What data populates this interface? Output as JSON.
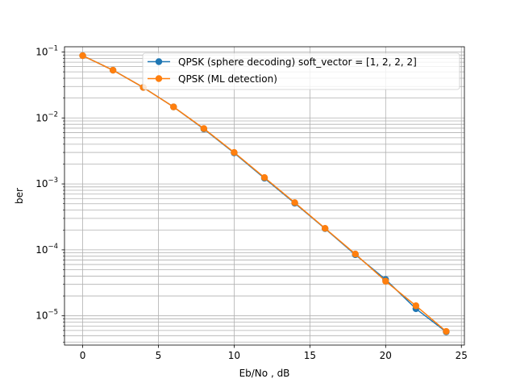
{
  "chart_data": {
    "type": "line",
    "title": "",
    "xlabel": "Eb/No , dB",
    "ylabel": "ber",
    "yscale": "log",
    "xlim": [
      -1.2,
      25.2
    ],
    "ylim": [
      3.6e-06,
      0.12
    ],
    "x_ticks": [
      0,
      5,
      10,
      15,
      20,
      25
    ],
    "y_ticks": [
      {
        "value": 0.1,
        "base": "10",
        "exp": "−1"
      },
      {
        "value": 0.01,
        "base": "10",
        "exp": "−2"
      },
      {
        "value": 0.001,
        "base": "10",
        "exp": "−3"
      },
      {
        "value": 0.0001,
        "base": "10",
        "exp": "−4"
      },
      {
        "value": 1e-05,
        "base": "10",
        "exp": "−5"
      }
    ],
    "grid": true,
    "legend_position": "top-right",
    "x": [
      0,
      2,
      4,
      6,
      8,
      10,
      12,
      14,
      16,
      18,
      20,
      22,
      24
    ],
    "series": [
      {
        "name": "QPSK (sphere decoding) soft_vector = [1, 2, 2, 2]",
        "color": "#1f77b4",
        "values": [
          0.088,
          0.053,
          0.029,
          0.0147,
          0.0068,
          0.00295,
          0.00122,
          0.00051,
          0.00021,
          8.45e-05,
          3.55e-05,
          1.28e-05,
          5.7e-06
        ]
      },
      {
        "name": "QPSK (ML detection)",
        "color": "#ff7f0e",
        "values": [
          0.088,
          0.053,
          0.029,
          0.0147,
          0.0069,
          0.003,
          0.00125,
          0.00052,
          0.000212,
          8.65e-05,
          3.35e-05,
          1.42e-05,
          5.8e-06
        ]
      }
    ]
  }
}
